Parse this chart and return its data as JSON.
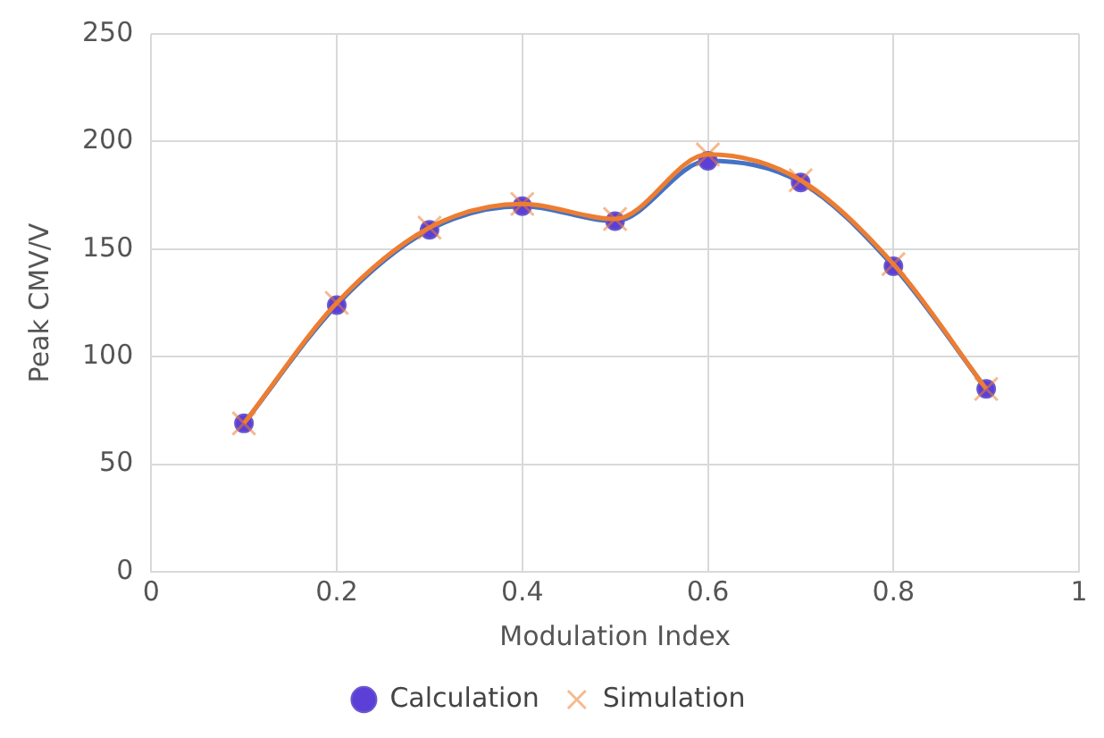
{
  "chart_data": {
    "type": "line",
    "xlabel": "Modulation Index",
    "ylabel": "Peak CMV/V",
    "x": [
      0.1,
      0.2,
      0.3,
      0.4,
      0.5,
      0.6,
      0.7,
      0.8,
      0.9
    ],
    "series": [
      {
        "name": "Calculation",
        "color": "#4472c4",
        "marker": "circle",
        "values": [
          69,
          124,
          159,
          170,
          163,
          191,
          181,
          142,
          85
        ]
      },
      {
        "name": "Simulation",
        "color": "#ed7d31",
        "marker": "cross",
        "values": [
          69,
          125,
          160,
          171,
          164,
          194,
          182,
          143,
          85
        ]
      }
    ],
    "xlim": [
      0,
      1
    ],
    "xticks": [
      0,
      0.2,
      0.4,
      0.6,
      0.8,
      1
    ],
    "ylim": [
      0,
      250
    ],
    "yticks": [
      0,
      50,
      100,
      150,
      200,
      250
    ],
    "grid": true,
    "legend": "bottom"
  }
}
